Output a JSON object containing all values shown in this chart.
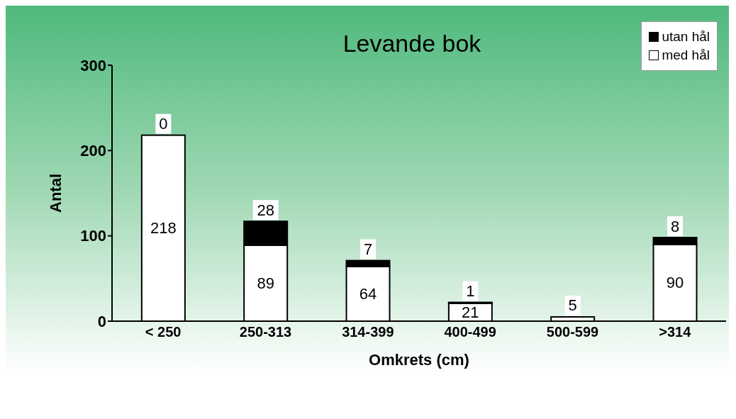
{
  "chart_data": {
    "type": "bar",
    "title": "Levande bok",
    "xlabel": "Omkrets (cm)",
    "ylabel": "Antal",
    "categories": [
      "< 250",
      "250-313",
      "314-399",
      "400-499",
      "500-599",
      ">314"
    ],
    "stacked": true,
    "ylim": [
      0,
      300
    ],
    "yticks": [
      0,
      100,
      200,
      300
    ],
    "legend": "top right",
    "series": [
      {
        "name": "med hål",
        "color": "#ffffff",
        "values": [
          218,
          89,
          64,
          21,
          5,
          90
        ],
        "value_labels": [
          "218",
          "89",
          "64",
          "21",
          "5",
          "90"
        ]
      },
      {
        "name": "utan hål",
        "color": "#000000",
        "values": [
          0,
          28,
          7,
          1,
          0,
          8
        ],
        "value_labels": [
          "0",
          "28",
          "7",
          "1",
          null,
          "8"
        ]
      }
    ]
  }
}
